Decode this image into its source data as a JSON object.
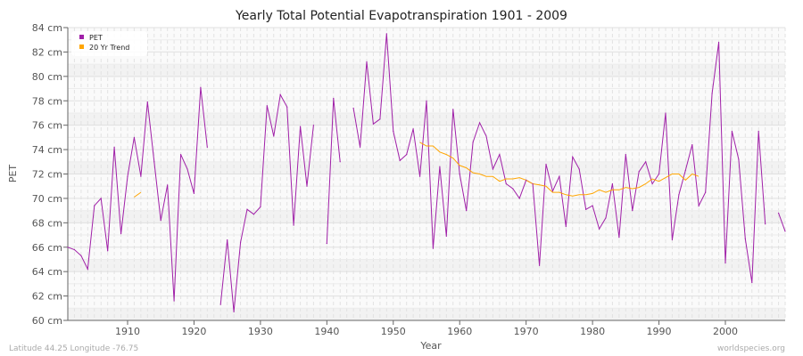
{
  "chart_data": {
    "type": "line",
    "title": "Yearly Total Potential Evapotranspiration 1901 - 2009",
    "xlabel": "Year",
    "ylabel": "PET",
    "xlim": [
      1901,
      2009
    ],
    "ylim": [
      60,
      84
    ],
    "x_ticks": [
      1910,
      1920,
      1930,
      1940,
      1950,
      1960,
      1970,
      1980,
      1990,
      2000
    ],
    "y_ticks": [
      "60 cm",
      "62 cm",
      "64 cm",
      "66 cm",
      "68 cm",
      "70 cm",
      "72 cm",
      "74 cm",
      "76 cm",
      "78 cm",
      "80 cm",
      "82 cm",
      "84 cm"
    ],
    "grid": true,
    "legend_position": "top-left",
    "series": [
      {
        "name": "PET",
        "color": "#a020a8",
        "x_start": 1901,
        "values": [
          66.0,
          65.8,
          65.3,
          64.2,
          69.4,
          70.0,
          65.7,
          74.2,
          67.1,
          71.8,
          75.0,
          71.8,
          77.9,
          73.0,
          68.2,
          71.1,
          61.6,
          73.6,
          72.4,
          70.4,
          79.1,
          74.2,
          null,
          61.3,
          66.6,
          60.7,
          66.4,
          69.1,
          68.7,
          69.3,
          77.6,
          75.1,
          78.5,
          77.5,
          67.8,
          75.9,
          71.0,
          76.0,
          null,
          66.3,
          78.2,
          73.0,
          null,
          77.4,
          74.2,
          81.2,
          76.1,
          76.5,
          83.5,
          75.5,
          73.1,
          73.6,
          75.7,
          71.8,
          78.0,
          65.9,
          72.6,
          66.9,
          77.3,
          72.0,
          69.0,
          74.6,
          76.2,
          75.1,
          72.4,
          73.6,
          71.2,
          70.8,
          70.0,
          71.5,
          71.2,
          64.5,
          72.8,
          70.6,
          71.8,
          67.7,
          73.4,
          72.4,
          69.1,
          69.4,
          67.5,
          68.4,
          71.2,
          66.8,
          73.6,
          69.0,
          72.2,
          73.0,
          71.2,
          72.0,
          77.0,
          66.6,
          70.3,
          72.3,
          74.4,
          69.4,
          70.5,
          78.6,
          82.8,
          64.7,
          75.5,
          73.2,
          66.7,
          63.1,
          75.5,
          67.9,
          null,
          68.8,
          67.3
        ]
      },
      {
        "name": "20 Yr Trend",
        "color": "#ffa500",
        "segments": [
          {
            "x_start": 1911,
            "values": [
              70.1,
              70.5
            ]
          },
          {
            "x_start": 1954,
            "values": [
              74.6,
              74.3,
              74.3,
              73.8,
              73.6,
              73.3,
              72.7,
              72.5,
              72.1,
              72.0,
              71.8,
              71.8,
              71.4,
              71.6,
              71.6,
              71.7,
              71.5,
              71.2,
              71.1,
              71.0,
              70.5,
              70.5,
              70.3,
              70.2,
              70.3,
              70.3,
              70.4,
              70.7,
              70.5,
              70.7,
              70.7,
              70.9,
              70.8,
              70.9,
              71.2,
              71.6,
              71.4,
              71.7,
              72.0,
              72.0,
              71.5,
              72.0,
              71.8
            ]
          }
        ]
      }
    ]
  },
  "footer": {
    "left": "Latitude 44.25 Longitude -76.75",
    "right": "worldspecies.org"
  }
}
